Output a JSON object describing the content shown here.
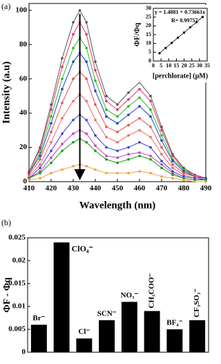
{
  "chart_data": [
    {
      "type": "line",
      "label": "(a)",
      "xlabel": "Wavelength (nm)",
      "ylabel": "Intensity (a.u)",
      "x": [
        410,
        415,
        420,
        425,
        430,
        433,
        436,
        440,
        445,
        450,
        455,
        460,
        465,
        470,
        475,
        480,
        485,
        490
      ],
      "xlim": [
        410,
        490
      ],
      "xticks": [
        410,
        420,
        430,
        440,
        450,
        460,
        470,
        480,
        490
      ],
      "ylim": [
        0,
        104
      ],
      "yticks": [
        0,
        20,
        40,
        60,
        80,
        100
      ],
      "series": [
        {
          "color": "#555555",
          "values": [
            6,
            20,
            45,
            72,
            93,
            100,
            93,
            70,
            50,
            45,
            52,
            58,
            50,
            32,
            16,
            8,
            4,
            2
          ]
        },
        {
          "color": "#e0306a",
          "values": [
            6,
            19,
            42,
            67,
            86,
            93,
            86,
            65,
            47,
            42,
            48,
            54,
            47,
            30,
            15,
            7,
            4,
            2
          ]
        },
        {
          "color": "#22bb22",
          "values": [
            5,
            17,
            38,
            60,
            78,
            84,
            78,
            59,
            42,
            38,
            44,
            49,
            42,
            27,
            13,
            7,
            3,
            2
          ]
        },
        {
          "color": "#1a3fbf",
          "values": [
            5,
            15,
            34,
            54,
            70,
            75,
            70,
            53,
            38,
            34,
            39,
            44,
            38,
            24,
            12,
            6,
            3,
            2
          ]
        },
        {
          "color": "#e05050",
          "values": [
            4,
            13,
            29,
            46,
            60,
            64,
            60,
            45,
            32,
            29,
            33,
            37,
            32,
            20,
            10,
            5,
            3,
            1
          ]
        },
        {
          "color": "#e86a6a",
          "values": [
            3,
            10,
            23,
            37,
            47,
            51,
            47,
            36,
            26,
            23,
            27,
            30,
            26,
            16,
            8,
            4,
            2,
            1
          ]
        },
        {
          "color": "#3a3fd0",
          "values": [
            2,
            8,
            18,
            28,
            36,
            39,
            36,
            27,
            20,
            18,
            20,
            23,
            20,
            12,
            6,
            3,
            2,
            1
          ]
        },
        {
          "color": "#c040c0",
          "values": [
            2,
            6,
            14,
            22,
            28,
            30,
            28,
            21,
            15,
            14,
            16,
            17,
            15,
            10,
            5,
            2,
            1,
            1
          ]
        },
        {
          "color": "#119911",
          "values": [
            2,
            5,
            11,
            18,
            23,
            25,
            23,
            18,
            13,
            11,
            13,
            15,
            13,
            8,
            4,
            2,
            1,
            1
          ]
        },
        {
          "color": "#f0a040",
          "values": [
            1,
            2,
            5,
            7,
            9,
            10,
            9,
            7,
            5,
            5,
            5,
            6,
            5,
            3,
            2,
            1,
            0,
            0
          ]
        }
      ]
    },
    {
      "type": "scatter",
      "xlabel": "[perchlorate] (μM)",
      "ylabel": "ΦF/Φq",
      "annotations": [
        "y = 1.4881 + 0.73661x",
        "R= 0.99757"
      ],
      "x": [
        4,
        8,
        12,
        16,
        20,
        24,
        28,
        32
      ],
      "values": [
        4.4,
        7.4,
        10.3,
        13.3,
        16.2,
        19.2,
        22.1,
        25.1
      ],
      "xlim": [
        0,
        35
      ],
      "xticks": [
        0,
        5,
        10,
        15,
        20,
        25,
        30,
        35
      ],
      "ylim": [
        0,
        30
      ],
      "yticks": [
        0,
        5,
        10,
        15,
        20,
        25,
        30
      ],
      "color": "#000000"
    },
    {
      "type": "bar",
      "label": "(b)",
      "ylabel": "ΦF - Φq",
      "categories": [
        "Br⁻",
        "ClO₄⁻",
        "Cl⁻",
        "SCN⁻",
        "NO₃⁻",
        "CH₃COO⁻",
        "BF₄⁻",
        "CF₃SO₃⁻"
      ],
      "values": [
        0.006,
        0.024,
        0.003,
        0.007,
        0.011,
        0.009,
        0.005,
        0.007
      ],
      "ylim": [
        0,
        0.025
      ],
      "yticks": [
        0,
        0.005,
        0.01,
        0.015,
        0.02,
        0.025
      ],
      "color": "#000000"
    }
  ]
}
